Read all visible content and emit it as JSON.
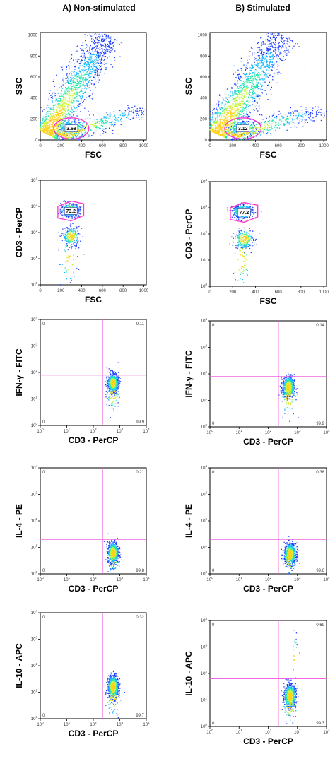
{
  "columns": [
    {
      "title": "A) Non-stimulated"
    },
    {
      "title": "B) Stimulated"
    }
  ],
  "chart_data": [
    {
      "type": "scatter",
      "panel": "A1",
      "xlabel": "FSC",
      "ylabel": "SSC",
      "xlim": [
        0,
        1024
      ],
      "ylim": [
        0,
        1024
      ],
      "xticks": [
        "0",
        "200",
        "400",
        "600",
        "800",
        "1000"
      ],
      "yticks": [
        "0",
        "200",
        "400",
        "600",
        "800",
        "1000"
      ],
      "gate": {
        "kind": "ellipse",
        "label": "3.68",
        "cx": 300,
        "cy": 110,
        "rx": 170,
        "ry": 100
      },
      "populations": [
        {
          "kind": "band",
          "x0": 60,
          "y0": 60,
          "x1": 650,
          "y1": 1000,
          "spread": 110,
          "n": 1800
        },
        {
          "kind": "band",
          "x0": 200,
          "y0": 40,
          "x1": 1000,
          "y1": 300,
          "spread": 90,
          "n": 500
        },
        {
          "kind": "blob",
          "cx": 300,
          "cy": 110,
          "sx": 60,
          "sy": 35,
          "n": 250
        }
      ]
    },
    {
      "type": "scatter",
      "panel": "B1",
      "xlabel": "FSC",
      "ylabel": "SSC",
      "xlim": [
        0,
        1024
      ],
      "ylim": [
        0,
        1024
      ],
      "xticks": [
        "0",
        "200",
        "400",
        "600",
        "800",
        "1000"
      ],
      "yticks": [
        "0",
        "200",
        "400",
        "600",
        "800",
        "1000"
      ],
      "gate": {
        "kind": "ellipse",
        "label": "3.12",
        "cx": 290,
        "cy": 110,
        "rx": 160,
        "ry": 100
      },
      "populations": [
        {
          "kind": "band",
          "x0": 60,
          "y0": 60,
          "x1": 650,
          "y1": 1000,
          "spread": 110,
          "n": 1800
        },
        {
          "kind": "band",
          "x0": 200,
          "y0": 40,
          "x1": 1000,
          "y1": 300,
          "spread": 90,
          "n": 500
        },
        {
          "kind": "blob",
          "cx": 290,
          "cy": 110,
          "sx": 60,
          "sy": 35,
          "n": 250
        }
      ]
    },
    {
      "type": "scatter",
      "panel": "A2",
      "xlabel": "FSC",
      "ylabel": "CD3 - PerCP",
      "xlim": [
        0,
        1024
      ],
      "ylim": [
        0,
        4
      ],
      "yscale": "log",
      "xticks": [
        "0",
        "200",
        "400",
        "600",
        "800",
        "1000"
      ],
      "yticks": [
        "10^0",
        "10^1",
        "10^2",
        "10^3",
        "10^4"
      ],
      "gate": {
        "kind": "polygon",
        "label": "73.2",
        "points": [
          [
            170,
            3.0
          ],
          [
            300,
            3.2
          ],
          [
            420,
            3.1
          ],
          [
            420,
            2.65
          ],
          [
            300,
            2.45
          ],
          [
            170,
            2.55
          ]
        ]
      },
      "populations": [
        {
          "kind": "blob",
          "cx": 290,
          "cy": 2.85,
          "sx": 45,
          "sy": 0.12,
          "n": 500
        },
        {
          "kind": "blob",
          "cx": 300,
          "cy": 1.85,
          "sx": 40,
          "sy": 0.18,
          "n": 250
        },
        {
          "kind": "blob",
          "cx": 280,
          "cy": 1.0,
          "sx": 40,
          "sy": 0.5,
          "n": 60
        }
      ]
    },
    {
      "type": "scatter",
      "panel": "B2",
      "xlabel": "FSC",
      "ylabel": "CD3 - PerCP",
      "xlim": [
        0,
        1024
      ],
      "ylim": [
        0,
        4
      ],
      "yscale": "log",
      "xticks": [
        "0",
        "200",
        "400",
        "600",
        "800",
        "1000"
      ],
      "yticks": [
        "10^0",
        "10^1",
        "10^2",
        "10^3",
        "10^4"
      ],
      "gate": {
        "kind": "polygon",
        "label": "77.2",
        "points": [
          [
            180,
            3.0
          ],
          [
            300,
            3.2
          ],
          [
            420,
            3.1
          ],
          [
            420,
            2.65
          ],
          [
            300,
            2.45
          ],
          [
            180,
            2.55
          ]
        ]
      },
      "populations": [
        {
          "kind": "blob",
          "cx": 290,
          "cy": 2.85,
          "sx": 45,
          "sy": 0.12,
          "n": 500
        },
        {
          "kind": "blob",
          "cx": 300,
          "cy": 1.8,
          "sx": 40,
          "sy": 0.18,
          "n": 250
        },
        {
          "kind": "blob",
          "cx": 280,
          "cy": 1.0,
          "sx": 40,
          "sy": 0.5,
          "n": 60
        }
      ]
    },
    {
      "type": "scatter",
      "panel": "A3",
      "xlabel": "CD3 - PerCP",
      "ylabel": "IFN-γ - FITC",
      "xscale": "log",
      "yscale": "log",
      "xlim": [
        0,
        4
      ],
      "ylim": [
        0,
        4
      ],
      "xticks": [
        "10^0",
        "10^1",
        "10^2",
        "10^3",
        "10^4"
      ],
      "yticks": [
        "10^0",
        "10^1",
        "10^2",
        "10^3",
        "10^4"
      ],
      "quadrant": {
        "x": 2.35,
        "y": 1.9
      },
      "quadrant_labels": {
        "top_left": "0",
        "top_right": "0.11",
        "bottom_left": "0",
        "bottom_right": "99.9"
      },
      "populations": [
        {
          "kind": "blob",
          "cx": 2.75,
          "cy": 1.6,
          "sx": 0.1,
          "sy": 0.18,
          "n": 650
        },
        {
          "kind": "blob",
          "cx": 2.75,
          "cy": 1.2,
          "sx": 0.12,
          "sy": 0.35,
          "n": 80
        }
      ]
    },
    {
      "type": "scatter",
      "panel": "B3",
      "xlabel": "CD3 - PerCP",
      "ylabel": "IFN-γ - FITC",
      "xscale": "log",
      "yscale": "log",
      "xlim": [
        0,
        4
      ],
      "ylim": [
        0,
        4
      ],
      "xticks": [
        "10^0",
        "10^1",
        "10^2",
        "10^3",
        "10^4"
      ],
      "yticks": [
        "10^0",
        "10^1",
        "10^2",
        "10^3",
        "10^4"
      ],
      "quadrant": {
        "x": 2.35,
        "y": 1.9
      },
      "quadrant_labels": {
        "top_left": "0",
        "top_right": "0.14",
        "bottom_left": "0",
        "bottom_right": "99.9"
      },
      "populations": [
        {
          "kind": "blob",
          "cx": 2.7,
          "cy": 1.5,
          "sx": 0.1,
          "sy": 0.2,
          "n": 650
        },
        {
          "kind": "blob",
          "cx": 2.7,
          "cy": 1.1,
          "sx": 0.12,
          "sy": 0.35,
          "n": 80
        }
      ]
    },
    {
      "type": "scatter",
      "panel": "A4",
      "xlabel": "CD3 - PerCP",
      "ylabel": "IL-4 - PE",
      "xscale": "log",
      "yscale": "log",
      "xlim": [
        0,
        4
      ],
      "ylim": [
        0,
        4
      ],
      "xticks": [
        "10^0",
        "10^1",
        "10^2",
        "10^3",
        "10^4"
      ],
      "yticks": [
        "10^0",
        "10^1",
        "10^2",
        "10^3",
        "10^4"
      ],
      "quadrant": {
        "x": 2.35,
        "y": 1.3
      },
      "quadrant_labels": {
        "top_left": "0",
        "top_right": "0.21",
        "bottom_left": "0",
        "bottom_right": "99.8"
      },
      "populations": [
        {
          "kind": "blob",
          "cx": 2.75,
          "cy": 0.8,
          "sx": 0.1,
          "sy": 0.2,
          "n": 650
        },
        {
          "kind": "blob",
          "cx": 2.75,
          "cy": 0.6,
          "sx": 0.12,
          "sy": 0.3,
          "n": 80
        }
      ]
    },
    {
      "type": "scatter",
      "panel": "B4",
      "xlabel": "CD3 - PerCP",
      "ylabel": "IL-4 - PE",
      "xscale": "log",
      "yscale": "log",
      "xlim": [
        0,
        4
      ],
      "ylim": [
        0,
        4
      ],
      "xticks": [
        "10^0",
        "10^1",
        "10^2",
        "10^3",
        "10^4"
      ],
      "yticks": [
        "10^0",
        "10^1",
        "10^2",
        "10^3",
        "10^4"
      ],
      "quadrant": {
        "x": 2.35,
        "y": 1.3
      },
      "quadrant_labels": {
        "top_left": "0",
        "top_right": "0.38",
        "bottom_left": "0",
        "bottom_right": "99.6"
      },
      "populations": [
        {
          "kind": "blob",
          "cx": 2.75,
          "cy": 0.75,
          "sx": 0.1,
          "sy": 0.2,
          "n": 650
        },
        {
          "kind": "blob",
          "cx": 2.75,
          "cy": 0.55,
          "sx": 0.12,
          "sy": 0.3,
          "n": 80
        }
      ]
    },
    {
      "type": "scatter",
      "panel": "A5",
      "xlabel": "CD3 - PerCP",
      "ylabel": "IL-10 - APC",
      "xscale": "log",
      "yscale": "log",
      "xlim": [
        0,
        4
      ],
      "ylim": [
        0,
        4
      ],
      "xticks": [
        "10^0",
        "10^1",
        "10^2",
        "10^3",
        "10^4"
      ],
      "yticks": [
        "10^0",
        "10^1",
        "10^2",
        "10^3",
        "10^4"
      ],
      "quadrant": {
        "x": 2.35,
        "y": 1.8
      },
      "quadrant_labels": {
        "top_left": "0",
        "top_right": "0.32",
        "bottom_left": "0",
        "bottom_right": "99.7"
      },
      "populations": [
        {
          "kind": "blob",
          "cx": 2.75,
          "cy": 1.2,
          "sx": 0.1,
          "sy": 0.22,
          "n": 650
        },
        {
          "kind": "blob",
          "cx": 2.75,
          "cy": 0.8,
          "sx": 0.12,
          "sy": 0.35,
          "n": 80
        }
      ]
    },
    {
      "type": "scatter",
      "panel": "B5",
      "xlabel": "CD3 - PerCP",
      "ylabel": "IL-10 - APC",
      "xscale": "log",
      "yscale": "log",
      "xlim": [
        0,
        4
      ],
      "ylim": [
        0,
        4
      ],
      "xticks": [
        "10^0",
        "10^1",
        "10^2",
        "10^3",
        "10^4"
      ],
      "yticks": [
        "10^0",
        "10^1",
        "10^2",
        "10^3",
        "10^4"
      ],
      "quadrant": {
        "x": 2.35,
        "y": 1.8
      },
      "quadrant_labels": {
        "top_left": "0",
        "top_right": "0.69",
        "bottom_left": "0",
        "bottom_right": "99.3"
      },
      "populations": [
        {
          "kind": "blob",
          "cx": 2.75,
          "cy": 1.15,
          "sx": 0.1,
          "sy": 0.22,
          "n": 650
        },
        {
          "kind": "blob",
          "cx": 2.75,
          "cy": 0.8,
          "sx": 0.12,
          "sy": 0.35,
          "n": 80
        },
        {
          "kind": "blob",
          "cx": 2.9,
          "cy": 2.6,
          "sx": 0.05,
          "sy": 0.5,
          "n": 20
        }
      ]
    }
  ],
  "colors": {
    "gate": "#ff33cc",
    "quadrant": "#ee66dd",
    "axis": "#000000",
    "density": [
      "#1a3cff",
      "#19b8ff",
      "#27e8a6",
      "#c8f53c",
      "#ffd21a"
    ]
  }
}
